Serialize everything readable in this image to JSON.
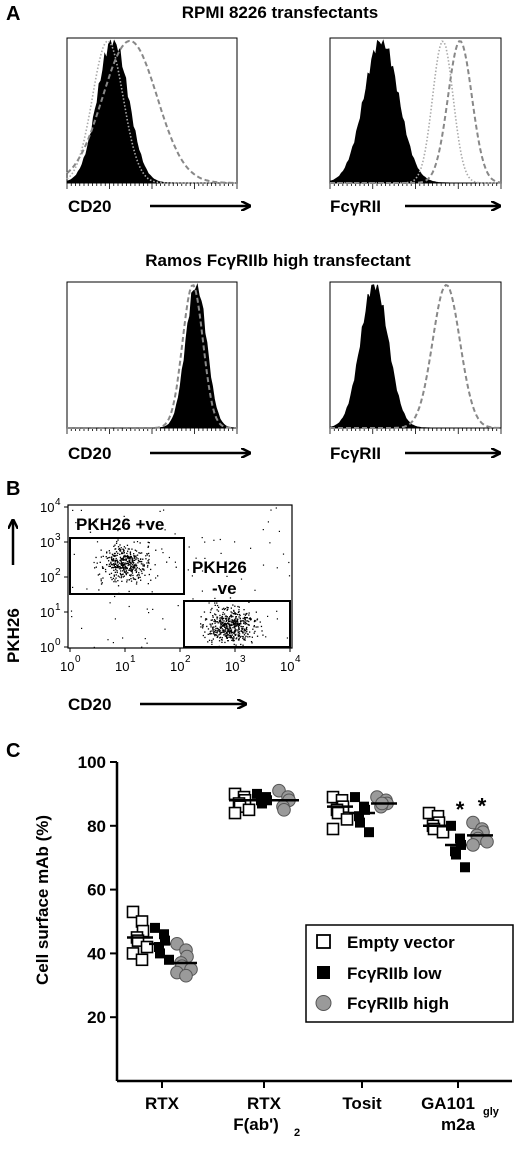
{
  "panel_a": {
    "letter": "A",
    "section1_title": "RPMI 8226 transfectants",
    "section2_title": "Ramos FcγRIIb high transfectant",
    "hist_labels": {
      "cd20": "CD20",
      "fcgr": "FcγRII"
    }
  },
  "panel_b": {
    "letter": "B",
    "y_label": "PKH26",
    "x_label": "CD20",
    "gate_pos": "PKH26 +ve",
    "gate_neg_line1": "PKH26",
    "gate_neg_line2": "-ve",
    "y_ticks": [
      "10",
      "10",
      "10",
      "10",
      "10"
    ],
    "y_tick_exp": [
      "4",
      "3",
      "2",
      "1",
      "0"
    ],
    "x_ticks": [
      "10",
      "10",
      "10",
      "10",
      "10"
    ],
    "x_tick_exp": [
      "0",
      "1",
      "2",
      "3",
      "4"
    ]
  },
  "chart_data": [
    {
      "type": "histogram",
      "panel": "A",
      "title": "RPMI 8226 transfectants",
      "xlabel": "CD20",
      "series": [
        {
          "style": "filled-black",
          "peak_x": 0.27,
          "width": 0.09
        },
        {
          "style": "dotted-light",
          "peak_x": 0.24,
          "width": 0.09
        },
        {
          "style": "dashed-gray",
          "peak_x": 0.37,
          "width": 0.16
        }
      ]
    },
    {
      "type": "histogram",
      "panel": "A",
      "title": "RPMI 8226 transfectants",
      "xlabel": "FcγRII",
      "series": [
        {
          "style": "filled-black",
          "peak_x": 0.3,
          "width": 0.1
        },
        {
          "style": "dotted-light",
          "peak_x": 0.66,
          "width": 0.06
        },
        {
          "style": "dashed-gray",
          "peak_x": 0.76,
          "width": 0.07
        }
      ]
    },
    {
      "type": "histogram",
      "panel": "A",
      "title": "Ramos FcγRIIb high transfectant",
      "xlabel": "CD20",
      "series": [
        {
          "style": "filled-black",
          "peak_x": 0.76,
          "width": 0.06
        },
        {
          "style": "dashed-gray",
          "peak_x": 0.74,
          "width": 0.06
        }
      ]
    },
    {
      "type": "histogram",
      "panel": "A",
      "title": "Ramos FcγRIIb high transfectant",
      "xlabel": "FcγRII",
      "series": [
        {
          "style": "filled-black",
          "peak_x": 0.26,
          "width": 0.08
        },
        {
          "style": "dashed-gray",
          "peak_x": 0.68,
          "width": 0.08
        }
      ]
    },
    {
      "type": "scatter",
      "panel": "B",
      "xlabel": "CD20",
      "ylabel": "PKH26",
      "xscale": "log",
      "yscale": "log",
      "xlim": [
        1,
        10000
      ],
      "ylim": [
        1,
        10000
      ],
      "populations": [
        {
          "name": "PKH26 +ve",
          "center_x": 10,
          "center_y": 250
        },
        {
          "name": "PKH26 -ve",
          "center_x": 800,
          "center_y": 4
        }
      ]
    },
    {
      "type": "scatter",
      "panel": "C",
      "ylabel": "Cell surface mAb (%)",
      "ylim": [
        0,
        100
      ],
      "yticks": [
        20,
        40,
        60,
        80,
        100
      ],
      "categories": [
        "RTX",
        "RTX F(ab')2",
        "Tosit",
        "GA101gly m2a"
      ],
      "category_lines": [
        [
          "RTX"
        ],
        [
          "RTX",
          "F(ab')",
          "2"
        ],
        [
          "Tosit"
        ],
        [
          "GA101",
          "gly",
          "m2a"
        ]
      ],
      "series": [
        {
          "name": "Empty vector",
          "marker": "open-square",
          "points": [
            [
              53,
              50,
              47,
              45,
              44,
              42,
              40,
              38
            ],
            [
              90,
              89,
              88,
              87,
              86,
              85,
              84
            ],
            [
              89,
              88,
              86,
              85,
              84,
              82,
              79
            ],
            [
              84,
              83,
              81,
              80,
              79,
              78
            ]
          ],
          "medians": [
            45,
            88,
            86,
            80
          ]
        },
        {
          "name": "FcγRIIb low",
          "marker": "filled-square",
          "points": [
            [
              48,
              46,
              44,
              42,
              40,
              38
            ],
            [
              90,
              89,
              88,
              88,
              87
            ],
            [
              89,
              86,
              85,
              83,
              81,
              78
            ],
            [
              80,
              76,
              74,
              72,
              71,
              67
            ]
          ],
          "medians": [
            43,
            88,
            84,
            74
          ]
        },
        {
          "name": "FcγRIIb high",
          "marker": "gray-circle",
          "points": [
            [
              43,
              41,
              39,
              37,
              36,
              35,
              34,
              33
            ],
            [
              91,
              89,
              88,
              86,
              85
            ],
            [
              89,
              88,
              87,
              86,
              87
            ],
            [
              81,
              79,
              78,
              77,
              76,
              75,
              74
            ]
          ],
          "medians": [
            37,
            88,
            87,
            77
          ]
        }
      ],
      "annotations": [
        {
          "category": "GA101gly m2a",
          "series": "FcγRIIb low",
          "text": "*"
        },
        {
          "category": "GA101gly m2a",
          "series": "FcγRIIb high",
          "text": "*"
        }
      ]
    }
  ],
  "panel_c": {
    "letter": "C",
    "ylabel": "Cell surface mAb (%)",
    "legend": [
      "Empty vector",
      "FcγRIIb low",
      "FcγRIIb high"
    ]
  }
}
